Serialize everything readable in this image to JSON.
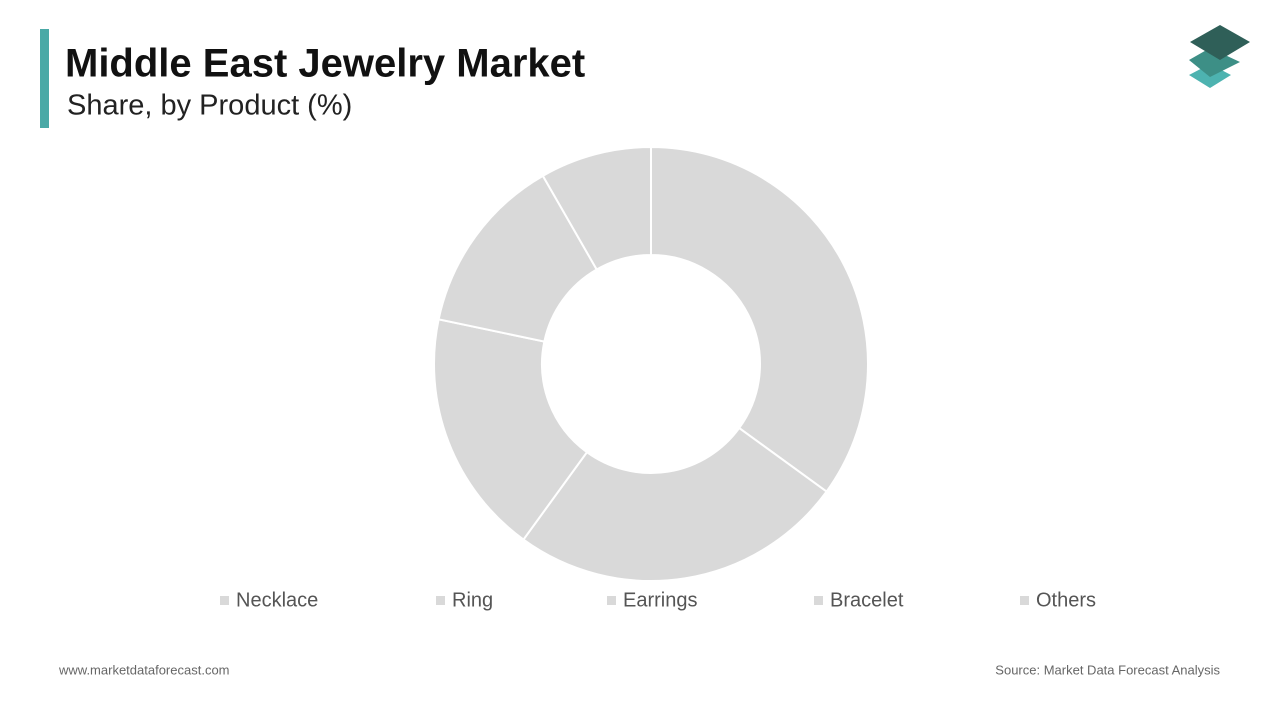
{
  "chart_data": {
    "type": "donut",
    "title": "Middle East Jewelry Market",
    "subtitle": "Share, by Product (%)",
    "categories": [
      "Necklace",
      "Ring",
      "Earrings",
      "Bracelet",
      "Others"
    ],
    "values": [
      35,
      25,
      18.3,
      13.4,
      8.3
    ],
    "color": "#d9d9d9"
  },
  "footer": {
    "website": "www.marketdataforecast.com",
    "source": "Source: Market Data Forecast Analysis"
  }
}
